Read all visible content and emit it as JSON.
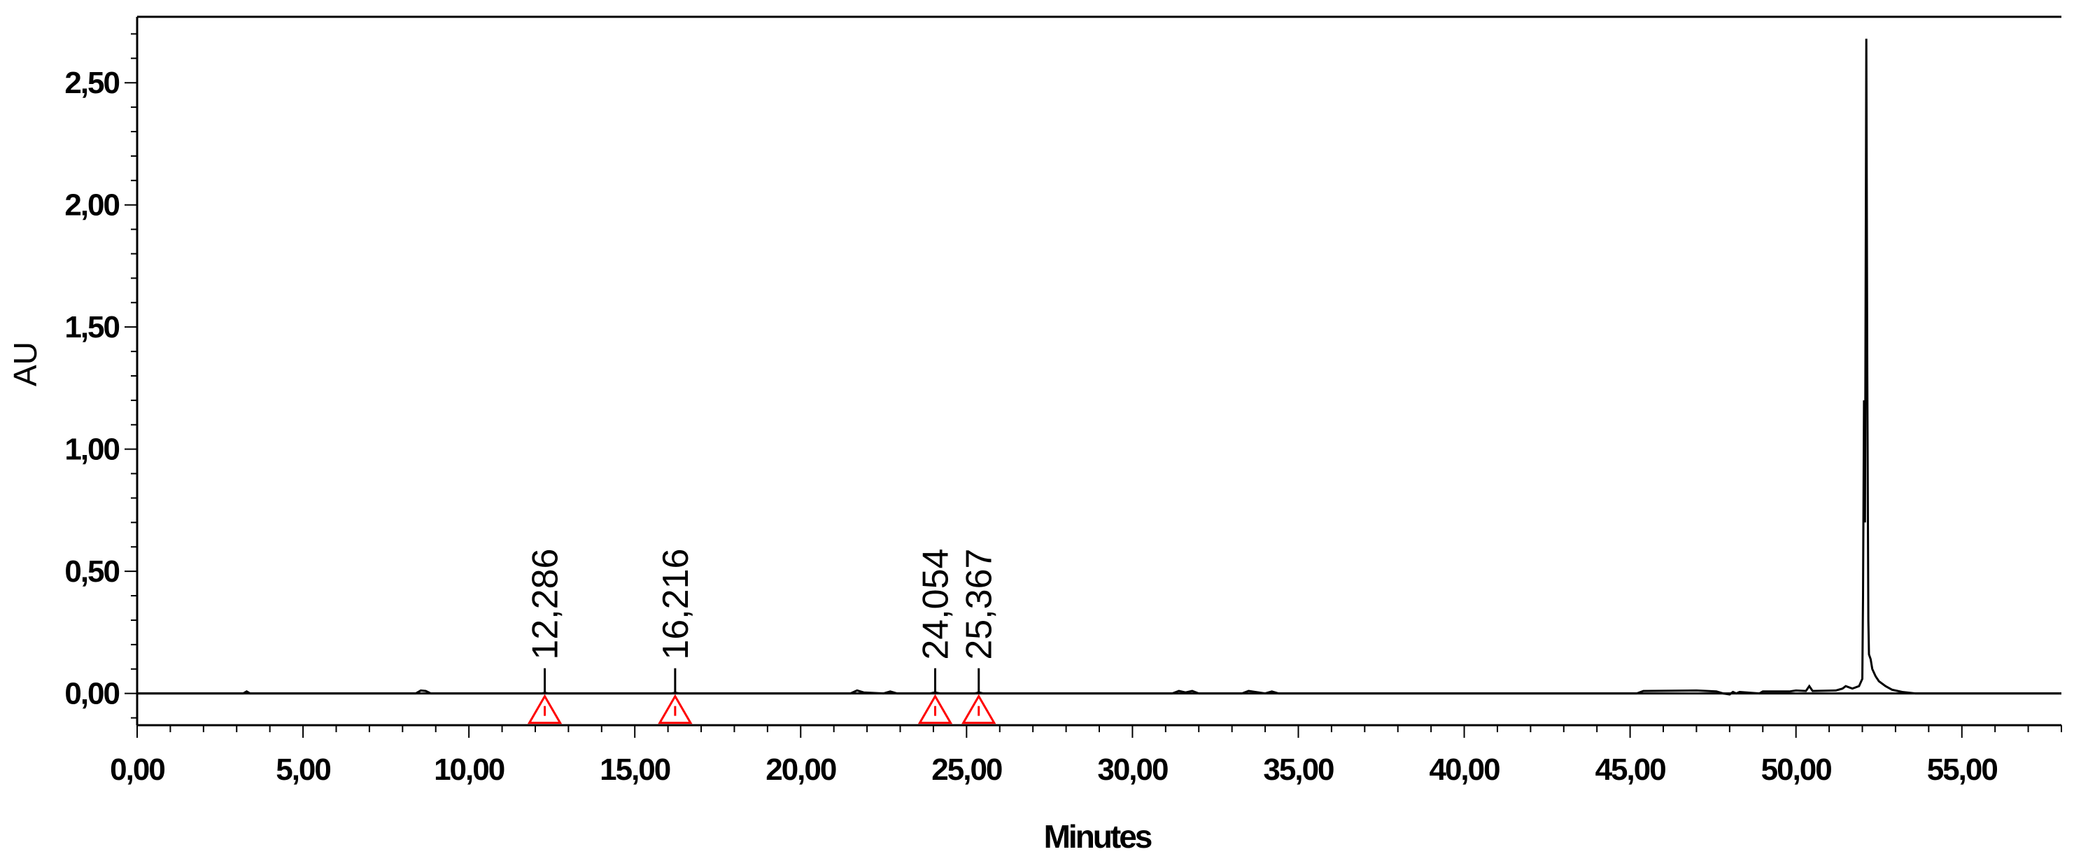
{
  "chart_data": {
    "type": "line",
    "xlabel": "Minutes",
    "ylabel": "AU",
    "xlim": [
      0,
      58.0
    ],
    "ylim": [
      -0.13,
      2.77
    ],
    "x_ticks": [
      {
        "value": 0,
        "label": "0,00"
      },
      {
        "value": 5,
        "label": "5,00"
      },
      {
        "value": 10,
        "label": "10,00"
      },
      {
        "value": 15,
        "label": "15,00"
      },
      {
        "value": 20,
        "label": "20,00"
      },
      {
        "value": 25,
        "label": "25,00"
      },
      {
        "value": 30,
        "label": "30,00"
      },
      {
        "value": 35,
        "label": "35,00"
      },
      {
        "value": 40,
        "label": "40,00"
      },
      {
        "value": 45,
        "label": "45,00"
      },
      {
        "value": 50,
        "label": "50,00"
      },
      {
        "value": 55,
        "label": "55,00"
      }
    ],
    "y_ticks": [
      {
        "value": 0.0,
        "label": "0,00"
      },
      {
        "value": 0.5,
        "label": "0,50"
      },
      {
        "value": 1.0,
        "label": "1,00"
      },
      {
        "value": 1.5,
        "label": "1,50"
      },
      {
        "value": 2.0,
        "label": "2,00"
      },
      {
        "value": 2.5,
        "label": "2,50"
      }
    ],
    "grid": false,
    "baseline": 0.0,
    "marker_color": "#ff0000",
    "line_color": "#000000",
    "peak_markers": [
      {
        "x": 12.286,
        "label": "12,286"
      },
      {
        "x": 16.216,
        "label": "16,216"
      },
      {
        "x": 24.054,
        "label": "24,054"
      },
      {
        "x": 25.367,
        "label": "25,367"
      }
    ],
    "series": [
      {
        "x": [
          0,
          3.2,
          3.3,
          3.4,
          8.4,
          8.55,
          8.7,
          8.85,
          12.2,
          12.29,
          12.4,
          16.1,
          16.22,
          16.35,
          21.5,
          21.7,
          21.9,
          22.5,
          22.7,
          22.9,
          23.9,
          24.05,
          24.2,
          25.25,
          25.37,
          25.5,
          31.2,
          31.4,
          31.6,
          31.8,
          32.0,
          33.3,
          33.5,
          33.7,
          34.0,
          34.2,
          34.4,
          45.2,
          45.4,
          47.0,
          47.6,
          47.8,
          48.0,
          48.1,
          48.2,
          48.3,
          48.9,
          49.0,
          49.8,
          50.0,
          50.3,
          50.4,
          50.5,
          51.2,
          51.4,
          51.5,
          51.7,
          51.9,
          52.0,
          52.02,
          52.05,
          52.08,
          52.12,
          52.15,
          52.18,
          52.2,
          52.25,
          52.3,
          52.4,
          52.5,
          52.7,
          52.9,
          53.2,
          53.6,
          58.0
        ],
        "y": [
          0.0,
          0.0,
          0.008,
          0.0,
          0.0,
          0.012,
          0.01,
          0.0,
          0.0,
          0.003,
          0.0,
          0.0,
          0.003,
          0.0,
          0.0,
          0.012,
          0.004,
          0.0,
          0.008,
          0.0,
          0.0,
          0.004,
          0.0,
          0.0,
          0.004,
          0.0,
          0.0,
          0.01,
          0.004,
          0.01,
          0.0,
          0.0,
          0.01,
          0.006,
          0.0,
          0.008,
          0.0,
          0.0,
          0.01,
          0.012,
          0.008,
          0.0,
          -0.004,
          0.006,
          0.0,
          0.006,
          0.0,
          0.008,
          0.008,
          0.012,
          0.01,
          0.03,
          0.01,
          0.012,
          0.02,
          0.03,
          0.02,
          0.03,
          0.06,
          0.4,
          1.2,
          0.7,
          2.68,
          1.3,
          0.3,
          0.16,
          0.14,
          0.1,
          0.07,
          0.05,
          0.03,
          0.015,
          0.006,
          0.0,
          0.0
        ]
      }
    ]
  }
}
